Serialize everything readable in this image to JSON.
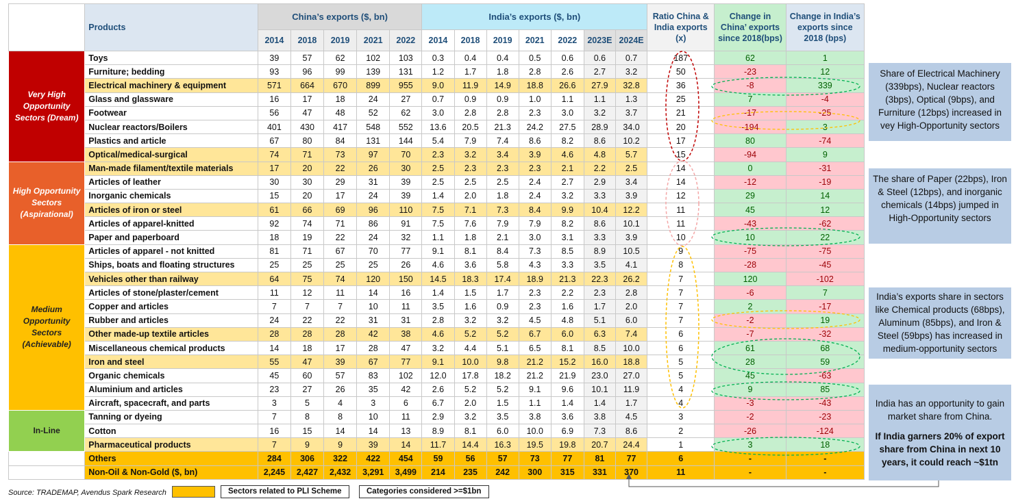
{
  "headers": {
    "products": "Products",
    "china": "China’s exports ($, bn)",
    "india": "India’s exports ($, bn)",
    "ratio": "Ratio China & India exports (x)",
    "change_china": "Change in China’ exports since 2018(bps)",
    "change_india": "Change in India’s exports since 2018 (bps)",
    "china_years": [
      "2014",
      "2018",
      "2019",
      "2021",
      "2022"
    ],
    "india_years": [
      "2014",
      "2018",
      "2019",
      "2021",
      "2022",
      "2023E",
      "2024E"
    ]
  },
  "categories": [
    {
      "label": "Very High Opportunity Sectors (Dream)"
    },
    {
      "label": "High Opportunity Sectors (Aspirational)"
    },
    {
      "label": "Medium Opportunity Sectors (Achievable)"
    },
    {
      "label": "In-Line"
    }
  ],
  "rows": [
    {
      "product": "Toys",
      "hl": false,
      "china": [
        "39",
        "57",
        "62",
        "102",
        "103"
      ],
      "india": [
        "0.3",
        "0.4",
        "0.4",
        "0.5",
        "0.6",
        "0.6",
        "0.7"
      ],
      "ratio": "187",
      "chg_c": "62",
      "chg_i": "1"
    },
    {
      "product": "Furniture; bedding",
      "hl": false,
      "china": [
        "93",
        "96",
        "99",
        "139",
        "131"
      ],
      "india": [
        "1.2",
        "1.7",
        "1.8",
        "2.8",
        "2.6",
        "2.7",
        "3.2"
      ],
      "ratio": "50",
      "chg_c": "-23",
      "chg_i": "12"
    },
    {
      "product": "Electrical machinery & equipment",
      "hl": true,
      "china": [
        "571",
        "664",
        "670",
        "899",
        "955"
      ],
      "india": [
        "9.0",
        "11.9",
        "14.9",
        "18.8",
        "26.6",
        "27.9",
        "32.8"
      ],
      "ratio": "36",
      "chg_c": "-8",
      "chg_i": "339"
    },
    {
      "product": "Glass and glassware",
      "hl": false,
      "china": [
        "16",
        "17",
        "18",
        "24",
        "27"
      ],
      "india": [
        "0.7",
        "0.9",
        "0.9",
        "1.0",
        "1.1",
        "1.1",
        "1.3"
      ],
      "ratio": "25",
      "chg_c": "7",
      "chg_i": "-4"
    },
    {
      "product": "Footwear",
      "hl": false,
      "china": [
        "56",
        "47",
        "48",
        "52",
        "62"
      ],
      "india": [
        "3.0",
        "2.8",
        "2.8",
        "2.3",
        "3.0",
        "3.2",
        "3.7"
      ],
      "ratio": "21",
      "chg_c": "-17",
      "chg_i": "-25"
    },
    {
      "product": "Nuclear reactors/Boilers",
      "hl": false,
      "china": [
        "401",
        "430",
        "417",
        "548",
        "552"
      ],
      "india": [
        "13.6",
        "20.5",
        "21.3",
        "24.2",
        "27.5",
        "28.9",
        "34.0"
      ],
      "ratio": "20",
      "chg_c": "-194",
      "chg_i": "3"
    },
    {
      "product": "Plastics and article",
      "hl": false,
      "china": [
        "67",
        "80",
        "84",
        "131",
        "144"
      ],
      "india": [
        "5.4",
        "7.9",
        "7.4",
        "8.6",
        "8.2",
        "8.6",
        "10.2"
      ],
      "ratio": "17",
      "chg_c": "80",
      "chg_i": "-74"
    },
    {
      "product": "Optical/medical-surgical",
      "hl": true,
      "china": [
        "74",
        "71",
        "73",
        "97",
        "70"
      ],
      "india": [
        "2.3",
        "3.2",
        "3.4",
        "3.9",
        "4.6",
        "4.8",
        "5.7"
      ],
      "ratio": "15",
      "chg_c": "-94",
      "chg_i": "9"
    },
    {
      "product": "Man-made filament/textile materials",
      "hl": true,
      "china": [
        "17",
        "20",
        "22",
        "26",
        "30"
      ],
      "india": [
        "2.5",
        "2.3",
        "2.3",
        "2.3",
        "2.1",
        "2.2",
        "2.5"
      ],
      "ratio": "14",
      "chg_c": "0",
      "chg_i": "-31"
    },
    {
      "product": "Articles of leather",
      "hl": false,
      "china": [
        "30",
        "30",
        "29",
        "31",
        "39"
      ],
      "india": [
        "2.5",
        "2.5",
        "2.5",
        "2.4",
        "2.7",
        "2.9",
        "3.4"
      ],
      "ratio": "14",
      "chg_c": "-12",
      "chg_i": "-19"
    },
    {
      "product": "Inorganic chemicals",
      "hl": false,
      "china": [
        "15",
        "20",
        "17",
        "24",
        "39"
      ],
      "india": [
        "1.4",
        "2.0",
        "1.8",
        "2.4",
        "3.2",
        "3.3",
        "3.9"
      ],
      "ratio": "12",
      "chg_c": "29",
      "chg_i": "14"
    },
    {
      "product": "Articles of iron or steel",
      "hl": true,
      "china": [
        "61",
        "66",
        "69",
        "96",
        "110"
      ],
      "india": [
        "7.5",
        "7.1",
        "7.3",
        "8.4",
        "9.9",
        "10.4",
        "12.2"
      ],
      "ratio": "11",
      "chg_c": "45",
      "chg_i": "12"
    },
    {
      "product": "Articles of apparel-knitted",
      "hl": false,
      "china": [
        "92",
        "74",
        "71",
        "86",
        "91"
      ],
      "india": [
        "7.5",
        "7.6",
        "7.9",
        "7.9",
        "8.2",
        "8.6",
        "10.1"
      ],
      "ratio": "11",
      "chg_c": "-43",
      "chg_i": "-62"
    },
    {
      "product": "Paper and paperboard",
      "hl": false,
      "china": [
        "18",
        "19",
        "22",
        "24",
        "32"
      ],
      "india": [
        "1.1",
        "1.8",
        "2.1",
        "3.0",
        "3.1",
        "3.3",
        "3.9"
      ],
      "ratio": "10",
      "chg_c": "10",
      "chg_i": "22"
    },
    {
      "product": "Articles of apparel - not knitted",
      "hl": false,
      "china": [
        "81",
        "71",
        "67",
        "70",
        "77"
      ],
      "india": [
        "9.1",
        "8.1",
        "8.4",
        "7.3",
        "8.5",
        "8.9",
        "10.5"
      ],
      "ratio": "9",
      "chg_c": "-75",
      "chg_i": "-75"
    },
    {
      "product": "Ships, boats and floating structures",
      "hl": false,
      "china": [
        "25",
        "25",
        "25",
        "25",
        "26"
      ],
      "india": [
        "4.6",
        "3.6",
        "5.8",
        "4.3",
        "3.3",
        "3.5",
        "4.1"
      ],
      "ratio": "8",
      "chg_c": "-28",
      "chg_i": "-45"
    },
    {
      "product": "Vehicles other than railway",
      "hl": true,
      "china": [
        "64",
        "75",
        "74",
        "120",
        "150"
      ],
      "india": [
        "14.5",
        "18.3",
        "17.4",
        "18.9",
        "21.3",
        "22.3",
        "26.2"
      ],
      "ratio": "7",
      "chg_c": "120",
      "chg_i": "-102"
    },
    {
      "product": "Articles of stone/plaster/cement",
      "hl": false,
      "china": [
        "11",
        "12",
        "11",
        "14",
        "16"
      ],
      "india": [
        "1.4",
        "1.5",
        "1.7",
        "2.3",
        "2.2",
        "2.3",
        "2.8"
      ],
      "ratio": "7",
      "chg_c": "-6",
      "chg_i": "7"
    },
    {
      "product": "Copper and articles",
      "hl": false,
      "china": [
        "7",
        "7",
        "7",
        "10",
        "11"
      ],
      "india": [
        "3.5",
        "1.6",
        "0.9",
        "2.3",
        "1.6",
        "1.7",
        "2.0"
      ],
      "ratio": "7",
      "chg_c": "2",
      "chg_i": "-17"
    },
    {
      "product": "Rubber and articles",
      "hl": false,
      "china": [
        "24",
        "22",
        "22",
        "31",
        "31"
      ],
      "india": [
        "2.8",
        "3.2",
        "3.2",
        "4.5",
        "4.8",
        "5.1",
        "6.0"
      ],
      "ratio": "7",
      "chg_c": "-2",
      "chg_i": "19"
    },
    {
      "product": "Other made-up textile articles",
      "hl": true,
      "china": [
        "28",
        "28",
        "28",
        "42",
        "38"
      ],
      "india": [
        "4.6",
        "5.2",
        "5.2",
        "6.7",
        "6.0",
        "6.3",
        "7.4"
      ],
      "ratio": "6",
      "chg_c": "-7",
      "chg_i": "-32"
    },
    {
      "product": "Miscellaneous chemical products",
      "hl": false,
      "china": [
        "14",
        "18",
        "17",
        "28",
        "47"
      ],
      "india": [
        "3.2",
        "4.4",
        "5.1",
        "6.5",
        "8.1",
        "8.5",
        "10.0"
      ],
      "ratio": "6",
      "chg_c": "61",
      "chg_i": "68"
    },
    {
      "product": "Iron and steel",
      "hl": true,
      "china": [
        "55",
        "47",
        "39",
        "67",
        "77"
      ],
      "india": [
        "9.1",
        "10.0",
        "9.8",
        "21.2",
        "15.2",
        "16.0",
        "18.8"
      ],
      "ratio": "5",
      "chg_c": "28",
      "chg_i": "59"
    },
    {
      "product": "Organic chemicals",
      "hl": false,
      "china": [
        "45",
        "60",
        "57",
        "83",
        "102"
      ],
      "india": [
        "12.0",
        "17.8",
        "18.2",
        "21.2",
        "21.9",
        "23.0",
        "27.0"
      ],
      "ratio": "5",
      "chg_c": "45",
      "chg_i": "-63"
    },
    {
      "product": "Aluminium and articles",
      "hl": false,
      "china": [
        "23",
        "27",
        "26",
        "35",
        "42"
      ],
      "india": [
        "2.6",
        "5.2",
        "5.2",
        "9.1",
        "9.6",
        "10.1",
        "11.9"
      ],
      "ratio": "4",
      "chg_c": "9",
      "chg_i": "85"
    },
    {
      "product": "Aircraft, spacecraft, and parts",
      "hl": false,
      "china": [
        "3",
        "5",
        "4",
        "3",
        "6"
      ],
      "india": [
        "6.7",
        "2.0",
        "1.5",
        "1.1",
        "1.4",
        "1.4",
        "1.7"
      ],
      "ratio": "4",
      "chg_c": "-3",
      "chg_i": "-43"
    },
    {
      "product": "Tanning or dyeing",
      "hl": false,
      "china": [
        "7",
        "8",
        "8",
        "10",
        "11"
      ],
      "india": [
        "2.9",
        "3.2",
        "3.5",
        "3.8",
        "3.6",
        "3.8",
        "4.5"
      ],
      "ratio": "3",
      "chg_c": "-2",
      "chg_i": "-23"
    },
    {
      "product": "Cotton",
      "hl": false,
      "china": [
        "16",
        "15",
        "14",
        "14",
        "13"
      ],
      "india": [
        "8.9",
        "8.1",
        "6.0",
        "10.0",
        "6.9",
        "7.3",
        "8.6"
      ],
      "ratio": "2",
      "chg_c": "-26",
      "chg_i": "-124"
    },
    {
      "product": "Pharmaceutical products",
      "hl": true,
      "china": [
        "7",
        "9",
        "9",
        "39",
        "14"
      ],
      "india": [
        "11.7",
        "14.4",
        "16.3",
        "19.5",
        "19.8",
        "20.7",
        "24.4"
      ],
      "ratio": "1",
      "chg_c": "3",
      "chg_i": "18"
    }
  ],
  "totals": [
    {
      "product": "Others",
      "china": [
        "284",
        "306",
        "322",
        "422",
        "454"
      ],
      "india": [
        "59",
        "56",
        "57",
        "73",
        "77",
        "81",
        "77"
      ],
      "ratio": "6",
      "chg_c": "-",
      "chg_i": "-"
    },
    {
      "product": "Non-Oil & Non-Gold ($, bn)",
      "china": [
        "2,245",
        "2,427",
        "2,432",
        "3,291",
        "3,499"
      ],
      "india": [
        "214",
        "235",
        "242",
        "300",
        "315",
        "331",
        "370"
      ],
      "ratio": "11",
      "chg_c": "-",
      "chg_i": "-"
    }
  ],
  "notes": {
    "n1": "Share of Electrical Machinery (339bps), Nuclear reactors (3bps), Optical (9bps), and Furniture (12bps) increased in vey High-Opportunity sectors",
    "n2": "The share of Paper (22bps), Iron & Steel (12bps), and inorganic chemicals (14bps) jumped in High-Opportunity sectors",
    "n3": "India’s exports share in sectors like Chemical products (68bps), Aluminum (85bps), and Iron & Steel (59bps) has increased in medium-opportunity sectors",
    "n4a": "India has an  opportunity to gain market share from China.",
    "n4b": "If India garners  20% of export share from China in next 10 years, it could reach ~$1tn"
  },
  "footer": {
    "source": "Source: TRADEMAP, Avendus Spark Research",
    "legend_pli": "Sectors related to PLI Scheme",
    "legend_cat": "Categories considered >=$1bn"
  },
  "colors": {
    "dream": "#c00000",
    "aspirational": "#e8602a",
    "achievable": "#ffc000",
    "inline": "#92d050",
    "positive": "#c6efce",
    "negative": "#ffc7ce",
    "note_bg": "#b8cce4"
  }
}
